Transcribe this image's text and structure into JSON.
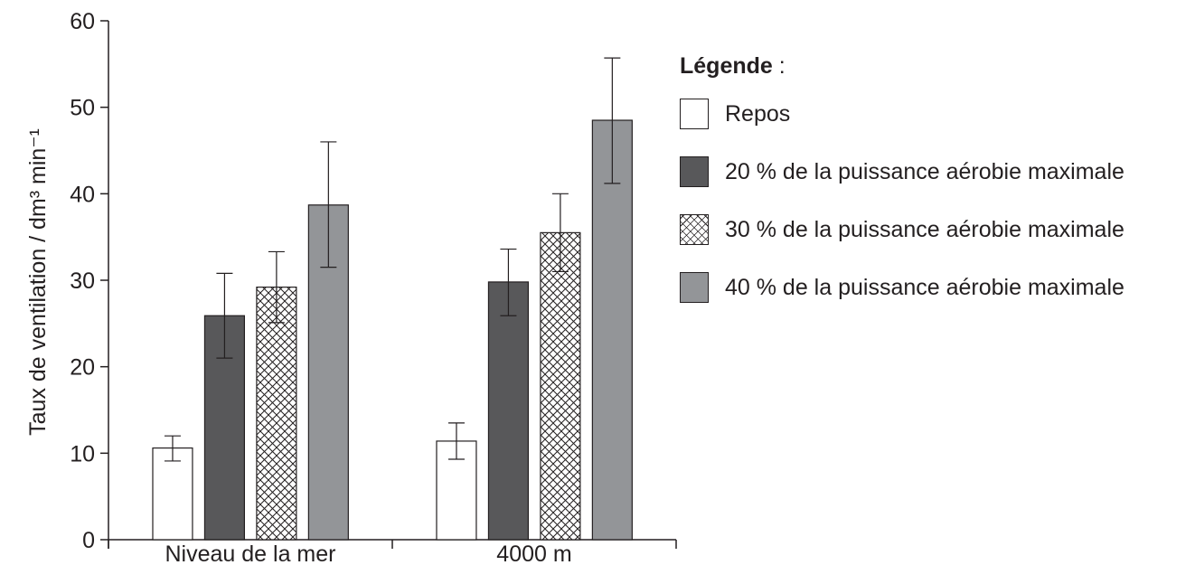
{
  "chart_data": {
    "type": "bar",
    "ylabel": "Taux de ventilation / dm³ min⁻¹",
    "ylim": [
      0,
      60
    ],
    "yticks": [
      0,
      10,
      20,
      30,
      40,
      50,
      60
    ],
    "categories": [
      "Niveau de la mer",
      "4000 m"
    ],
    "series": [
      {
        "name": "Repos",
        "values": [
          10.6,
          11.4
        ],
        "error_low": [
          9.1,
          9.3
        ],
        "error_high": [
          12.0,
          13.5
        ],
        "fill": "#ffffff",
        "pattern": "none"
      },
      {
        "name": "20 % de la puissance aérobie maximale",
        "values": [
          25.9,
          29.8
        ],
        "error_low": [
          21.0,
          25.9
        ],
        "error_high": [
          30.8,
          33.6
        ],
        "fill": "#58585a",
        "pattern": "none"
      },
      {
        "name": "30 % de la puissance aérobie maximale",
        "values": [
          29.2,
          35.5
        ],
        "error_low": [
          25.1,
          31.0
        ],
        "error_high": [
          33.3,
          40.0
        ],
        "fill": "#ffffff",
        "pattern": "crosshatch"
      },
      {
        "name": "40 % de la puissance aérobie maximale",
        "values": [
          38.7,
          48.5
        ],
        "error_low": [
          31.5,
          41.2
        ],
        "error_high": [
          46.0,
          55.7
        ],
        "fill": "#939598",
        "pattern": "none"
      }
    ],
    "legend": {
      "title": "Légende",
      "title_suffix": " :",
      "placement": "right"
    }
  }
}
